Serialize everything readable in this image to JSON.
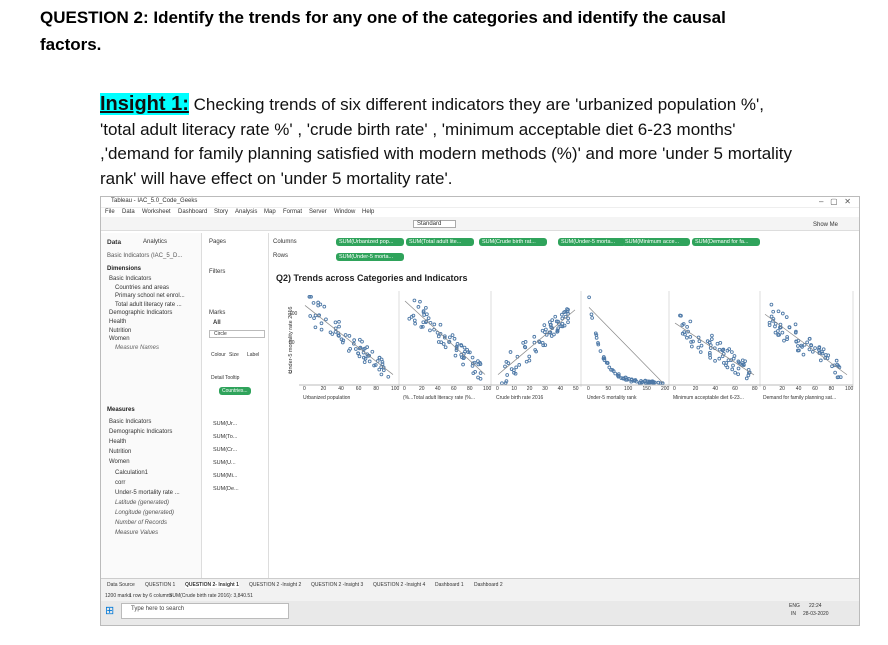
{
  "question": {
    "title": "QUESTION 2: Identify the trends for any one of the categories and identify the causal factors."
  },
  "insight": {
    "label": "Insight 1:",
    "text": "Checking trends of six different indicators they are 'urbanized population %', 'total adult literacy rate %' , 'crude birth rate' , 'minimum acceptable diet 6-23 months' ,'demand for family planning satisfied with modern methods (%)' and more 'under 5 mortality rank' will have effect on 'under 5 mortality rate'."
  },
  "screenshot": {
    "window_title": "Tableau - IAC_5.0_Code_Geeks",
    "menu": [
      "File",
      "Data",
      "Worksheet",
      "Dashboard",
      "Story",
      "Analysis",
      "Map",
      "Format",
      "Server",
      "Window",
      "Help"
    ],
    "toolbar_fit": "Standard",
    "show_me": "Show Me",
    "data_tab": "Data",
    "analytics_tab": "Analytics",
    "data_source": "Basic Indicators (IAC_5_D...",
    "dimensions_header": "Dimensions",
    "dimensions": [
      "Basic Indicators",
      "Countries and areas",
      "Primary school net enrol...",
      "Total adult literacy rate ...",
      "Demographic Indicators",
      "Health",
      "Nutrition",
      "Women",
      "Measure Names"
    ],
    "measures_header": "Measures",
    "measures": [
      "Basic Indicators",
      "Demographic Indicators",
      "Health",
      "Nutrition",
      "Women",
      "Calculation1",
      "corr",
      "Under-5 mortality rate ...",
      "Latitude (generated)",
      "Longitude (generated)",
      "Number of Records",
      "Measure Values"
    ],
    "pages": "Pages",
    "filters": "Filters",
    "marks": "Marks",
    "marks_all": "All",
    "mark_type": "Circle",
    "mark_buttons": [
      "Colour",
      "Size",
      "Label",
      "Detail",
      "Tooltip"
    ],
    "countries_pill": "Countries...",
    "mark_fields": [
      "SUM(Ur...",
      "SUM(To...",
      "SUM(Cr...",
      "SUM(U...",
      "SUM(Mi...",
      "SUM(De..."
    ],
    "columns_label": "Columns",
    "rows_label": "Rows",
    "column_pills": [
      "SUM(Urbanized pop...",
      "SUM(Total adult lite...",
      "SUM(Crude birth rat...",
      "SUM(Under-5 morta...",
      "SUM(Minimum acce...",
      "SUM(Demand for fa..."
    ],
    "row_pills": [
      "SUM(Under-5 morta..."
    ],
    "sheet_title": "Q2) Trends across Categories and Indicators",
    "y_label": "Under-5 mortality rate 2016",
    "yticks": [
      "100",
      "50",
      "0"
    ],
    "panels": [
      {
        "ticks": [
          "0",
          "20",
          "40",
          "60",
          "80",
          "100"
        ],
        "label": "Urbanized population"
      },
      {
        "ticks": [
          "0",
          "20",
          "40",
          "60",
          "80",
          "100"
        ],
        "label": "(%...Total adult literacy rate (%..."
      },
      {
        "ticks": [
          "0",
          "10",
          "20",
          "30",
          "40",
          "50"
        ],
        "label": "Crude birth rate 2016"
      },
      {
        "ticks": [
          "0",
          "50",
          "100",
          "150",
          "200"
        ],
        "label": "Under-5 mortality rank"
      },
      {
        "ticks": [
          "0",
          "20",
          "40",
          "60",
          "80"
        ],
        "label": "Minimum acceptable diet 6-23..."
      },
      {
        "ticks": [
          "0",
          "20",
          "40",
          "60",
          "80",
          "100"
        ],
        "label": "Demand for family planning sat..."
      }
    ],
    "sheet_tabs": [
      "Data Source",
      "QUESTION 1",
      "QUESTION 2- Insight 1",
      "QUESTION 2 -Insight 2",
      "QUESTION 2 -Insight 3",
      "QUESTION 2 -Insight 4",
      "Dashboard 1",
      "Dashboard 2"
    ],
    "status": [
      "1200 marks",
      "1 row by 6 columns",
      "SUM(Crude birth rate 2016): 3,840.51"
    ],
    "taskbar_search": "Type here to search",
    "tray": {
      "lang": "ENG",
      "region": "IN",
      "time": "22:24",
      "date": "28-03-2020"
    }
  }
}
